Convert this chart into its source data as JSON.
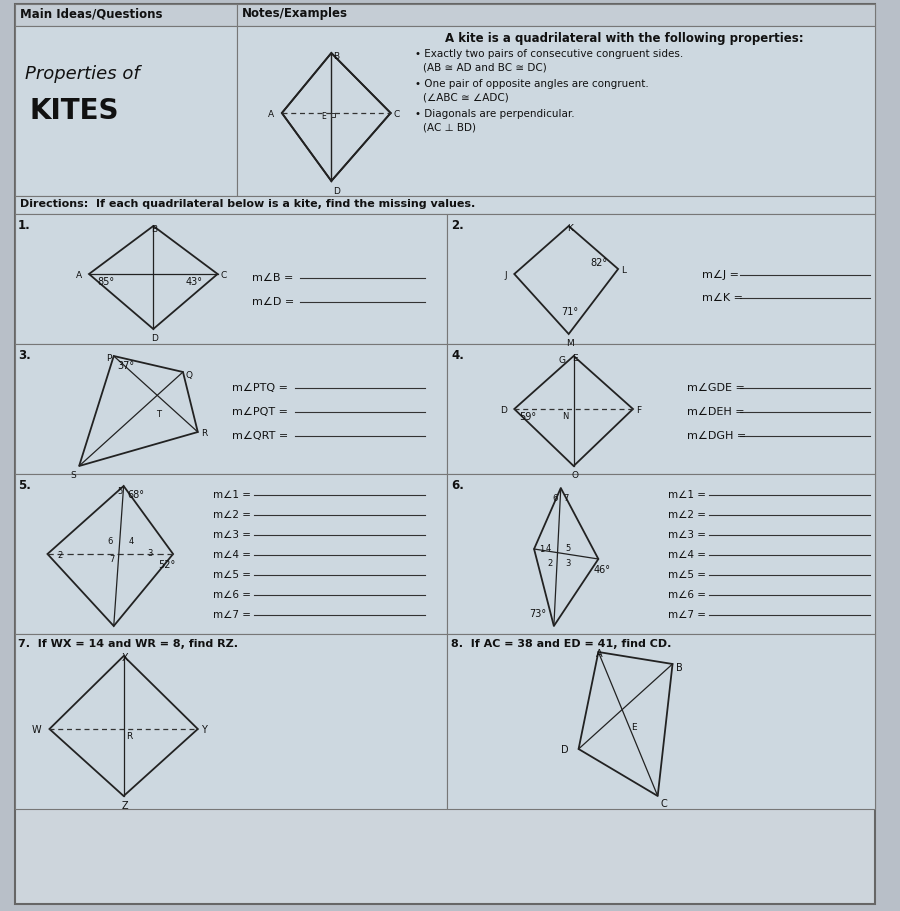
{
  "bg_color": "#b8bfc8",
  "page_bg": "#cdd5dc",
  "cell_bg": "#cdd8e0",
  "header_bg": "#c0c8d0",
  "line_color": "#888888",
  "header_col1": "Main Ideas/Questions",
  "header_col2": "Notes/Examples",
  "kite_def_title": "A kite is a quadrilateral with the following properties:",
  "bullet1": "Exactly two pairs of consecutive congruent sides.",
  "bullet1b": "(AB ≅ AD and BC ≅ DC)",
  "bullet2": "One pair of opposite angles are congruent.",
  "bullet2b": "(∠ABC ≅ ∠ADC)",
  "bullet3": "Diagonals are perpendicular.",
  "bullet3b": "(AC ⊥ BD)",
  "directions": "Directions:  If each quadrilateral below is a kite, find the missing values.",
  "prob1_angle_A": "85°",
  "prob1_angle_C": "43°",
  "prob1_q1": "m∠B =",
  "prob1_q2": "m∠D =",
  "prob2_angle_L": "82°",
  "prob2_angle_M": "71°",
  "prob2_q1": "m∠J =",
  "prob2_q2": "m∠K =",
  "prob3_angle_P": "37°",
  "prob3_q1": "m∠PTQ =",
  "prob3_q2": "m∠PQT =",
  "prob3_q3": "m∠QRT =",
  "prob4_angle_D": "59°",
  "prob4_q1": "m∠GDE =",
  "prob4_q2": "m∠DEH =",
  "prob4_q3": "m∠DGH =",
  "prob5_angle_top": "68°",
  "prob5_angle_right": "52°",
  "prob5_labels": [
    "m∠1 =",
    "m∠2 =",
    "m∠3 =",
    "m∠4 =",
    "m∠5 =",
    "m∠6 =",
    "m∠7 ="
  ],
  "prob6_angle_bottom": "73°",
  "prob6_angle_right": "46°",
  "prob6_labels": [
    "m∠1 =",
    "m∠2 =",
    "m∠3 =",
    "m∠4 =",
    "m∠5 =",
    "m∠6 =",
    "m∠7 ="
  ],
  "prob7_text": "7.  If WX = 14 and WR = 8, find RZ.",
  "prob8_text": "8.  If AC = 38 and ED = 41, find CD."
}
